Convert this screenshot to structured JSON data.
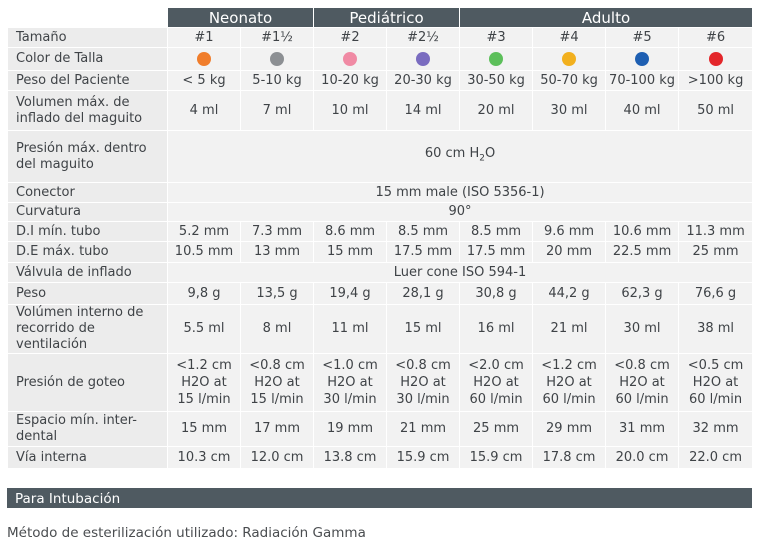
{
  "groups": [
    "Neonato",
    "Pediátrico",
    "Adulto"
  ],
  "rows": [
    {
      "label": "Tamaño",
      "cells": [
        "#1",
        "#1½",
        "#2",
        "#2½",
        "#3",
        "#4",
        "#5",
        "#6"
      ]
    },
    {
      "label": "Color de Talla",
      "colors": [
        "#f07d2b",
        "#8c8f93",
        "#f08aa4",
        "#7a6cc0",
        "#5cbf5a",
        "#f2b01e",
        "#1e5fb2",
        "#e3262a"
      ]
    },
    {
      "label": "Peso del Paciente",
      "cells": [
        "< 5 kg",
        "5-10 kg",
        "10-20 kg",
        "20-30 kg",
        "30-50 kg",
        "50-70 kg",
        "70-100 kg",
        ">100 kg"
      ]
    },
    {
      "label": "Volumen máx. de inflado del maguito",
      "cells": [
        "4 ml",
        "7 ml",
        "10 ml",
        "14 ml",
        "20 ml",
        "30 ml",
        "40 ml",
        "50 ml"
      ]
    },
    {
      "label": "Presión máx. dentro del maguito",
      "span": {
        "main": "60 cm H",
        "sub": "2",
        "tail": "O"
      }
    },
    {
      "label": "Conector",
      "span_text": "15 mm male (ISO 5356-1)"
    },
    {
      "label": "Curvatura",
      "span_text": "90°"
    },
    {
      "label": "D.I mín. tubo",
      "cells": [
        "5.2 mm",
        "7.3 mm",
        "8.6 mm",
        "8.5 mm",
        "8.5 mm",
        "9.6 mm",
        "10.6 mm",
        "11.3 mm"
      ]
    },
    {
      "label": "D.E máx. tubo",
      "cells": [
        "10.5 mm",
        "13 mm",
        "15 mm",
        "17.5 mm",
        "17.5 mm",
        "20 mm",
        "22.5 mm",
        "25 mm"
      ]
    },
    {
      "label": "Válvula de inflado",
      "span_text": "Luer cone ISO 594-1"
    },
    {
      "label": "Peso",
      "cells": [
        "9,8 g",
        "13,5 g",
        "19,4 g",
        "28,1 g",
        "30,8 g",
        "44,2 g",
        "62,3 g",
        "76,6 g"
      ]
    },
    {
      "label": "Volúmen interno de recorrido de ventilación",
      "cells": [
        "5.5 ml",
        "8 ml",
        "11 ml",
        "15 ml",
        "16 ml",
        "21 ml",
        "30 ml",
        "38 ml"
      ]
    },
    {
      "label": "Presión de goteo",
      "multi": [
        [
          "<1.2 cm",
          "H2O at",
          "15 l/min"
        ],
        [
          "<0.8 cm",
          "H2O at",
          "15 l/min"
        ],
        [
          "<1.0 cm",
          "H2O at",
          "30 l/min"
        ],
        [
          "<0.8 cm",
          "H2O at",
          "30 l/min"
        ],
        [
          "<2.0 cm",
          "H2O at",
          "60 l/min"
        ],
        [
          "<1.2 cm",
          "H2O at",
          "60 l/min"
        ],
        [
          "<0.8 cm",
          "H2O at",
          "60 l/min"
        ],
        [
          "<0.5 cm",
          "H2O at",
          "60 l/min"
        ]
      ]
    },
    {
      "label": "Espacio mín. inter-dental",
      "cells": [
        "15 mm",
        "17 mm",
        "19 mm",
        "21 mm",
        "25 mm",
        "29 mm",
        "31 mm",
        "32 mm"
      ]
    },
    {
      "label": "Vía interna",
      "cells": [
        "10.3 cm",
        "12.0 cm",
        "13.8 cm",
        "15.9 cm",
        "15.9 cm",
        "17.8 cm",
        "20.0 cm",
        "22.0 cm"
      ]
    }
  ],
  "footer": "Para Intubación",
  "sterilization": "Método de esterilización utilizado: Radiación Gamma"
}
